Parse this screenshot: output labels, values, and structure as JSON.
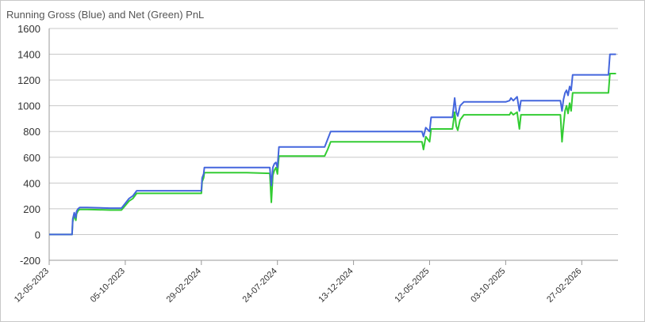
{
  "chart_data": {
    "type": "line",
    "title": "Running Gross (Blue) and Net (Green) PnL",
    "xlabel": "",
    "ylabel": "",
    "ylim": [
      -200,
      1600
    ],
    "y_ticks": [
      -200,
      0,
      200,
      400,
      600,
      800,
      1000,
      1200,
      1400,
      1600
    ],
    "x_tick_labels": [
      "12-05-2023",
      "05-10-2023",
      "29-02-2024",
      "24-07-2024",
      "13-12-2024",
      "12-05-2025",
      "03-10-2025",
      "27-02-2026"
    ],
    "grid": "horizontal",
    "legend": "none",
    "colors": {
      "gross": "#4466dd",
      "net": "#33cc33",
      "grid": "#c8c8c8",
      "axis": "#999999"
    },
    "series": [
      {
        "name": "Running Gross",
        "color": "#4466dd",
        "x": [
          0,
          0.3,
          0.31,
          0.33,
          0.35,
          0.36,
          0.38,
          0.4,
          0.42,
          0.5,
          0.8,
          0.95,
          1.05,
          1.1,
          1.15,
          1.2,
          1.6,
          1.88,
          2.0,
          2.01,
          2.03,
          2.04,
          2.05,
          2.6,
          2.9,
          2.92,
          2.94,
          2.96,
          2.98,
          3.0,
          3.02,
          3.04,
          3.05,
          3.06,
          3.4,
          3.62,
          3.66,
          3.7,
          3.9,
          4.2,
          4.9,
          4.92,
          4.95,
          5.0,
          5.02,
          5.25,
          5.3,
          5.33,
          5.35,
          5.37,
          5.4,
          5.45,
          6.0,
          6.05,
          6.07,
          6.1,
          6.15,
          6.18,
          6.2,
          6.7,
          6.72,
          6.74,
          6.76,
          6.78,
          6.8,
          6.82,
          6.84,
          6.86,
          6.88,
          7.0,
          7.35,
          7.37,
          7.4,
          7.45
        ],
        "values": [
          0,
          0,
          120,
          170,
          130,
          180,
          200,
          210,
          210,
          210,
          205,
          205,
          280,
          300,
          340,
          340,
          340,
          340,
          340,
          440,
          470,
          520,
          520,
          520,
          520,
          380,
          520,
          550,
          560,
          520,
          680,
          680,
          680,
          680,
          680,
          680,
          740,
          800,
          800,
          800,
          800,
          760,
          830,
          800,
          910,
          910,
          910,
          1060,
          950,
          920,
          1000,
          1030,
          1030,
          1040,
          1060,
          1040,
          1070,
          960,
          1040,
          1040,
          1040,
          960,
          1050,
          1100,
          1120,
          1080,
          1150,
          1120,
          1240,
          1240,
          1240,
          1400,
          1400,
          1400
        ]
      },
      {
        "name": "Running Net",
        "color": "#33cc33",
        "x": [
          0,
          0.3,
          0.31,
          0.33,
          0.35,
          0.36,
          0.38,
          0.4,
          0.42,
          0.5,
          0.8,
          0.95,
          1.05,
          1.1,
          1.15,
          1.2,
          1.6,
          1.88,
          2.0,
          2.01,
          2.03,
          2.04,
          2.05,
          2.6,
          2.9,
          2.92,
          2.94,
          2.96,
          2.98,
          3.0,
          3.02,
          3.04,
          3.05,
          3.06,
          3.4,
          3.62,
          3.66,
          3.7,
          3.9,
          4.2,
          4.9,
          4.92,
          4.95,
          5.0,
          5.02,
          5.25,
          5.3,
          5.33,
          5.35,
          5.37,
          5.4,
          5.45,
          6.0,
          6.05,
          6.07,
          6.1,
          6.15,
          6.18,
          6.2,
          6.7,
          6.72,
          6.74,
          6.76,
          6.78,
          6.8,
          6.82,
          6.84,
          6.86,
          6.88,
          7.0,
          7.35,
          7.37,
          7.4,
          7.45
        ],
        "values": [
          0,
          0,
          100,
          150,
          110,
          160,
          185,
          195,
          195,
          195,
          190,
          190,
          260,
          280,
          320,
          320,
          320,
          320,
          320,
          410,
          440,
          480,
          480,
          480,
          475,
          250,
          460,
          500,
          520,
          470,
          610,
          610,
          610,
          610,
          610,
          610,
          660,
          720,
          720,
          720,
          720,
          660,
          760,
          720,
          820,
          820,
          820,
          950,
          840,
          810,
          890,
          930,
          930,
          930,
          950,
          930,
          950,
          820,
          930,
          930,
          930,
          720,
          850,
          960,
          1000,
          940,
          1020,
          960,
          1100,
          1100,
          1100,
          1250,
          1250,
          1250
        ]
      }
    ]
  }
}
